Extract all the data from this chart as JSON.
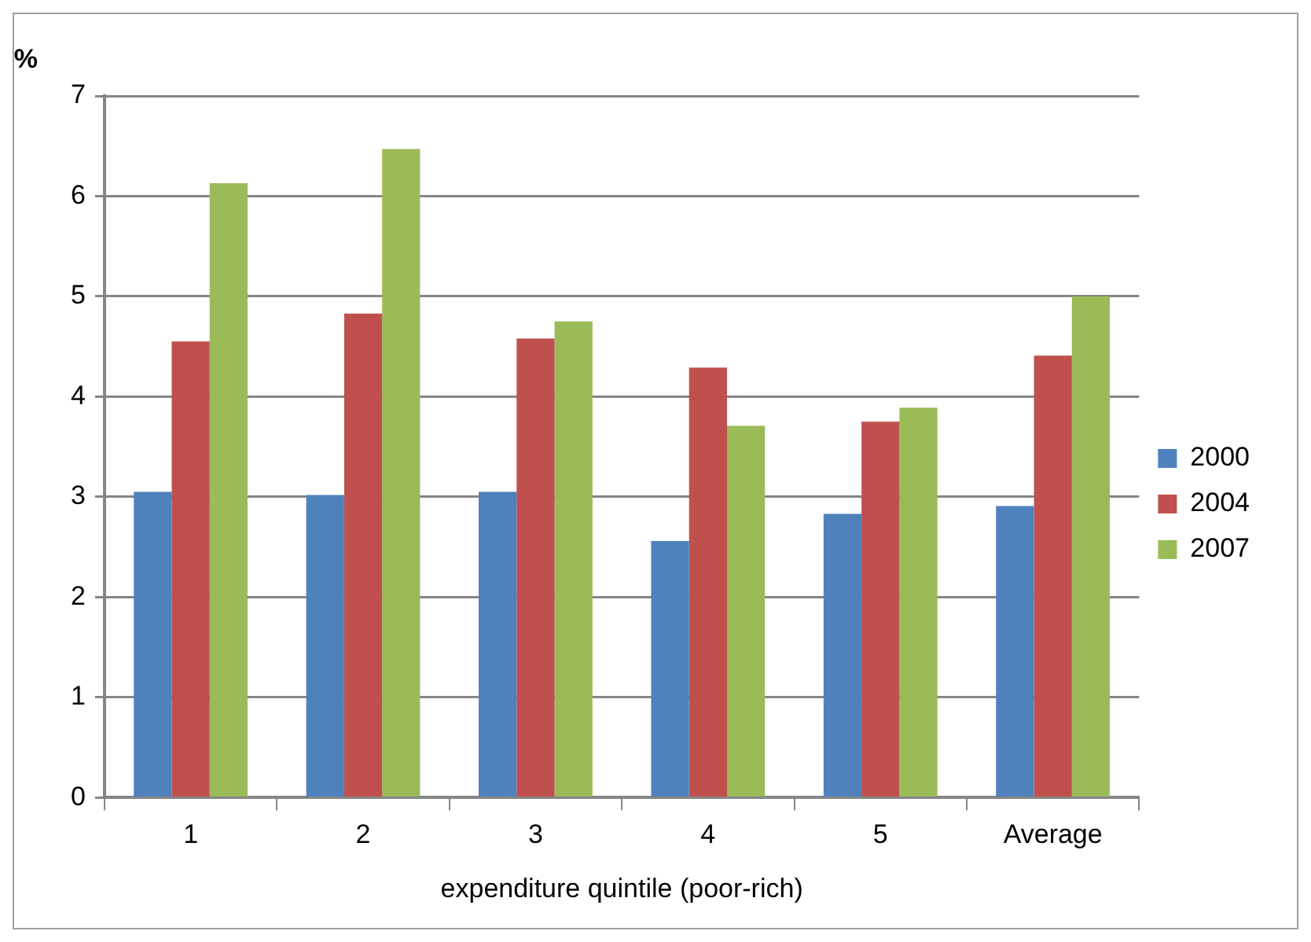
{
  "chart_data": {
    "type": "bar",
    "xlabel": "expenditure quintile (poor-rich)",
    "ylabel": "%",
    "categories": [
      "1",
      "2",
      "3",
      "4",
      "5",
      "Average"
    ],
    "series": [
      {
        "name": "2000",
        "color": "#4f81bd",
        "values": [
          3.05,
          3.02,
          3.05,
          2.56,
          2.83,
          2.91
        ]
      },
      {
        "name": "2004",
        "color": "#c0504d",
        "values": [
          4.55,
          4.83,
          4.58,
          4.29,
          3.75,
          4.41
        ]
      },
      {
        "name": "2007",
        "color": "#9bbb59",
        "values": [
          6.13,
          6.47,
          4.75,
          3.71,
          3.89,
          5.0
        ]
      }
    ],
    "ylim": [
      0,
      7
    ],
    "yticks": [
      0,
      1,
      2,
      3,
      4,
      5,
      6,
      7
    ],
    "grid": "y",
    "legend": "right"
  }
}
